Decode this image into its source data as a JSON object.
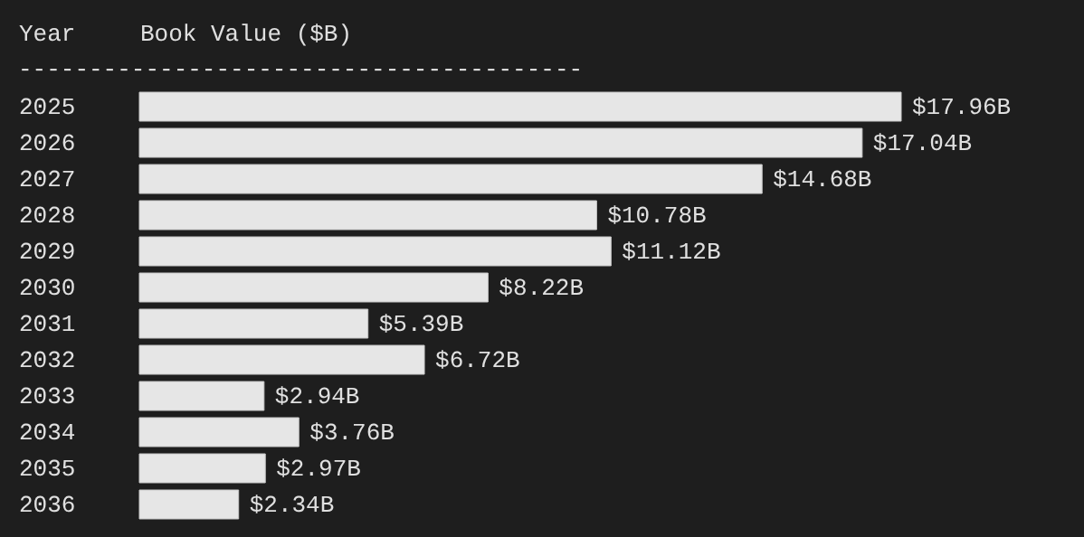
{
  "chart_data": {
    "type": "bar",
    "orientation": "horizontal",
    "xlabel": "Book Value ($B)",
    "ylabel": "Year",
    "categories": [
      "2025",
      "2026",
      "2027",
      "2028",
      "2029",
      "2030",
      "2031",
      "2032",
      "2033",
      "2034",
      "2035",
      "2036"
    ],
    "values": [
      17.96,
      17.04,
      14.68,
      10.78,
      11.12,
      8.22,
      5.39,
      6.72,
      2.94,
      3.76,
      2.97,
      2.34
    ],
    "value_labels": [
      "$17.96B",
      "$17.04B",
      "$14.68B",
      "$10.78B",
      "$11.12B",
      "$8.22B",
      "$5.39B",
      "$6.72B",
      "$2.94B",
      "$3.76B",
      "$2.97B",
      "$2.34B"
    ],
    "color": "#e6e6e6",
    "annotations": [
      "----------------------------------------"
    ],
    "grid": false
  }
}
